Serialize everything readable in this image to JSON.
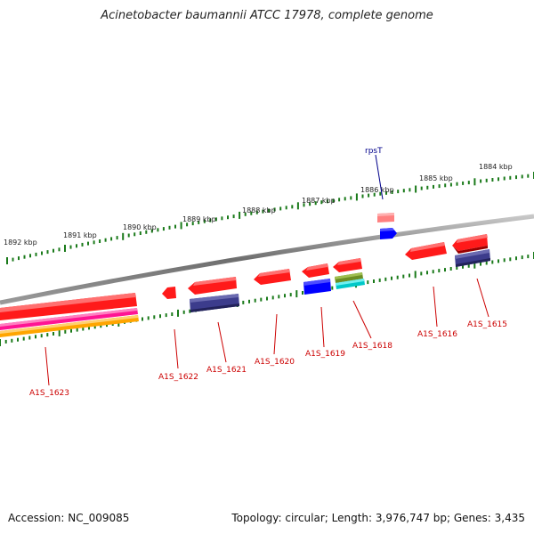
{
  "title": "Acinetobacter baumannii ATCC 17978, complete genome",
  "footer": {
    "accession": "Accession: NC_009085",
    "stats": "Topology: circular; Length: 3,976,747 bp; Genes: 3,435"
  },
  "ticks": [
    {
      "label": "1884 kbp",
      "kbp": 1884
    },
    {
      "label": "1885 kbp",
      "kbp": 1885
    },
    {
      "label": "1886 kbp",
      "kbp": 1886
    },
    {
      "label": "1887 kbp",
      "kbp": 1887
    },
    {
      "label": "1888 kbp",
      "kbp": 1888
    },
    {
      "label": "1889 kbp",
      "kbp": 1889
    },
    {
      "label": "1890 kbp",
      "kbp": 1890
    },
    {
      "label": "1891 kbp",
      "kbp": 1891
    },
    {
      "label": "1892 kbp",
      "kbp": 1892
    }
  ],
  "gene_labels": [
    {
      "label": "rpsT",
      "color": "#00008b"
    },
    {
      "label": "A1S_1615",
      "color": "#cc0000"
    },
    {
      "label": "A1S_1616",
      "color": "#cc0000"
    },
    {
      "label": "A1S_1618",
      "color": "#cc0000"
    },
    {
      "label": "A1S_1619",
      "color": "#cc0000"
    },
    {
      "label": "A1S_1620",
      "color": "#cc0000"
    },
    {
      "label": "A1S_1621",
      "color": "#cc0000"
    },
    {
      "label": "A1S_1622",
      "color": "#cc0000"
    },
    {
      "label": "A1S_1623",
      "color": "#cc0000"
    }
  ],
  "colors": {
    "backbone": "#808080",
    "tick": "#1a7a1a",
    "cds": "#ff1a1a",
    "gene": "#3a3a8a",
    "rrna": "#ff7f7f",
    "trna": "#0000ff",
    "misc1": "#ff1493",
    "misc2": "#ffa500",
    "misc3": "#6b8e23",
    "misc4": "#00cccc"
  }
}
